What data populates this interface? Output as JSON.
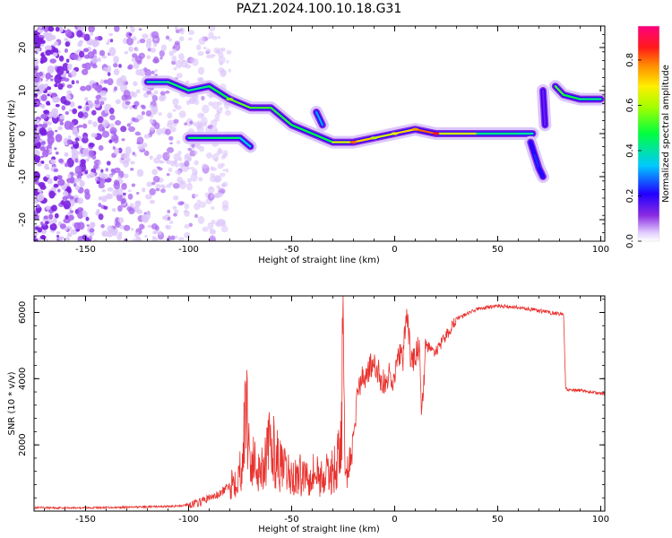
{
  "title": "PAZ1.2024.100.10.18.G31",
  "chart_data": [
    {
      "type": "heatmap",
      "title": "PAZ1.2024.100.10.18.G31",
      "xlabel": "Height of straight line (km)",
      "ylabel": "Frequency (Hz)",
      "xlim": [
        -175,
        102
      ],
      "ylim": [
        -25,
        25
      ],
      "xticks": [
        -150,
        -100,
        -50,
        0,
        50,
        100
      ],
      "yticks": [
        -20,
        -10,
        0,
        10,
        20
      ],
      "colorbar": {
        "label": "Normalized spectral amplitude",
        "range": [
          0,
          0.95
        ],
        "ticks": [
          0.0,
          0.2,
          0.4,
          0.6,
          0.8
        ],
        "colormap": "rainbow: violet-blue-cyan-green-yellow-orange-red-magenta"
      },
      "tracks": [
        {
          "x": [
            -120,
            -110,
            -100,
            -90,
            -80,
            -70,
            -60,
            -50,
            -40,
            -30,
            -20,
            -10,
            0,
            10,
            20,
            40,
            60,
            67
          ],
          "y": [
            12,
            12,
            10,
            11,
            8,
            6,
            6,
            2,
            0,
            -2,
            -2,
            -1,
            0,
            1,
            0,
            0,
            0,
            0
          ],
          "amplitude": [
            0.4,
            0.45,
            0.5,
            0.4,
            0.6,
            0.55,
            0.55,
            0.5,
            0.5,
            0.5,
            0.85,
            0.65,
            0.7,
            0.8,
            0.9,
            0.45,
            0.45,
            0.4
          ]
        },
        {
          "x": [
            -100,
            -85,
            -75,
            -70
          ],
          "y": [
            -1,
            -1,
            -1,
            -3
          ],
          "amplitude": [
            0.45,
            0.5,
            0.45,
            0.3
          ]
        },
        {
          "x": [
            -38,
            -35
          ],
          "y": [
            5,
            2
          ],
          "amplitude": [
            0.3,
            0.35
          ]
        },
        {
          "x": [
            66,
            68,
            70,
            72
          ],
          "y": [
            -2,
            -5,
            -8,
            -10
          ],
          "amplitude": [
            0.2,
            0.25,
            0.25,
            0.2
          ]
        },
        {
          "x": [
            72,
            73
          ],
          "y": [
            10,
            2
          ],
          "amplitude": [
            0.15,
            0.15
          ]
        },
        {
          "x": [
            78,
            82,
            90,
            100
          ],
          "y": [
            11,
            9,
            8,
            8
          ],
          "amplitude": [
            0.55,
            0.55,
            0.45,
            0.45
          ]
        }
      ]
    },
    {
      "type": "line",
      "xlabel": "Height of straight line (km)",
      "ylabel": "SNR (10 * v/v)",
      "xlim": [
        -175,
        102
      ],
      "ylim": [
        0,
        6500
      ],
      "xticks": [
        -150,
        -100,
        -50,
        0,
        50,
        100
      ],
      "yticks": [
        2000,
        4000,
        6000
      ],
      "color": "#e8322e",
      "series": [
        {
          "x": [
            -175,
            -150,
            -125,
            -105,
            -95,
            -90,
            -85,
            -80,
            -75,
            -73,
            -72,
            -70,
            -65,
            -60,
            -55,
            -50,
            -45,
            -40,
            -35,
            -30,
            -26,
            -25,
            -24,
            -22,
            -20,
            -18,
            -15,
            -12,
            -8,
            -5,
            -2,
            0,
            2,
            4,
            6,
            8,
            10,
            12,
            13,
            15,
            20,
            25,
            30,
            40,
            50,
            60,
            70,
            75,
            82,
            83,
            84,
            90,
            100,
            102
          ],
          "y": [
            100,
            100,
            120,
            150,
            250,
            400,
            500,
            800,
            1200,
            2200,
            3400,
            1500,
            1300,
            2000,
            1300,
            1000,
            1100,
            1200,
            1000,
            1200,
            1800,
            6100,
            800,
            1500,
            2000,
            3700,
            4000,
            4400,
            4200,
            3800,
            4200,
            3900,
            4800,
            4500,
            6100,
            4400,
            4700,
            5000,
            2600,
            5000,
            4800,
            5300,
            5800,
            6100,
            6200,
            6150,
            6050,
            6000,
            5950,
            3700,
            3650,
            3650,
            3550,
            3550
          ]
        }
      ]
    }
  ],
  "colors": {
    "snr_line": "#e8322e",
    "background": "#ffffff",
    "axis": "#000000"
  }
}
